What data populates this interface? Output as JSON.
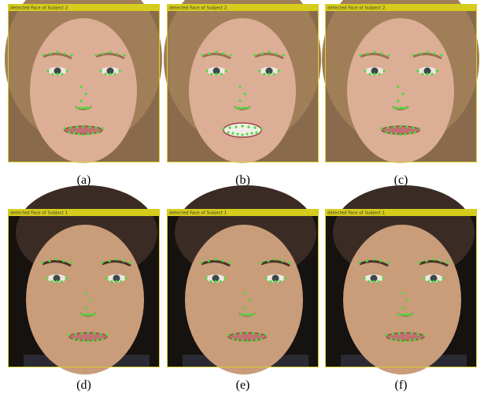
{
  "panels": [
    {
      "header": "detected Face of Subject 2",
      "caption": "(a)"
    },
    {
      "header": "detected Face of Subject 2",
      "caption": "(b)"
    },
    {
      "header": "detected Face of Subject 2",
      "caption": "(c)"
    },
    {
      "header": "detected Face of Subject 1",
      "caption": "(d)"
    },
    {
      "header": "detected Face of Subject 1",
      "caption": "(e)"
    },
    {
      "header": "detected Face of Subject 1",
      "caption": "(f)"
    }
  ]
}
